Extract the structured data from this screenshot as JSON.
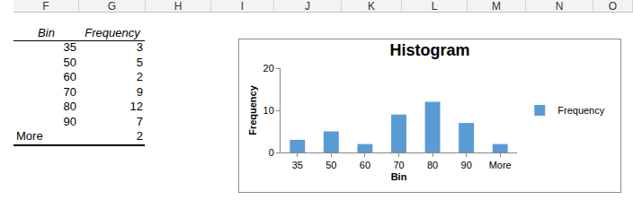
{
  "columns": [
    "F",
    "G",
    "H",
    "I",
    "J",
    "K",
    "L",
    "M",
    "N",
    "O"
  ],
  "table": {
    "header": [
      "Bin",
      "Frequency"
    ],
    "rows": [
      [
        "35",
        3
      ],
      [
        "50",
        5
      ],
      [
        "60",
        2
      ],
      [
        "70",
        9
      ],
      [
        "80",
        12
      ],
      [
        "90",
        7
      ],
      [
        "More",
        2
      ]
    ]
  },
  "chart_data": {
    "type": "bar",
    "title": "Histogram",
    "x_label": "Bin",
    "y_label": "Frequency",
    "categories": [
      "35",
      "50",
      "60",
      "70",
      "80",
      "90",
      "More"
    ],
    "series": [
      {
        "name": "Frequency",
        "color": "#5b9bd5",
        "values": [
          3,
          5,
          2,
          9,
          12,
          7,
          2
        ]
      }
    ],
    "ylim": [
      0,
      20
    ],
    "yticks": [
      0,
      10,
      20
    ],
    "grid": false,
    "legend": "right"
  }
}
